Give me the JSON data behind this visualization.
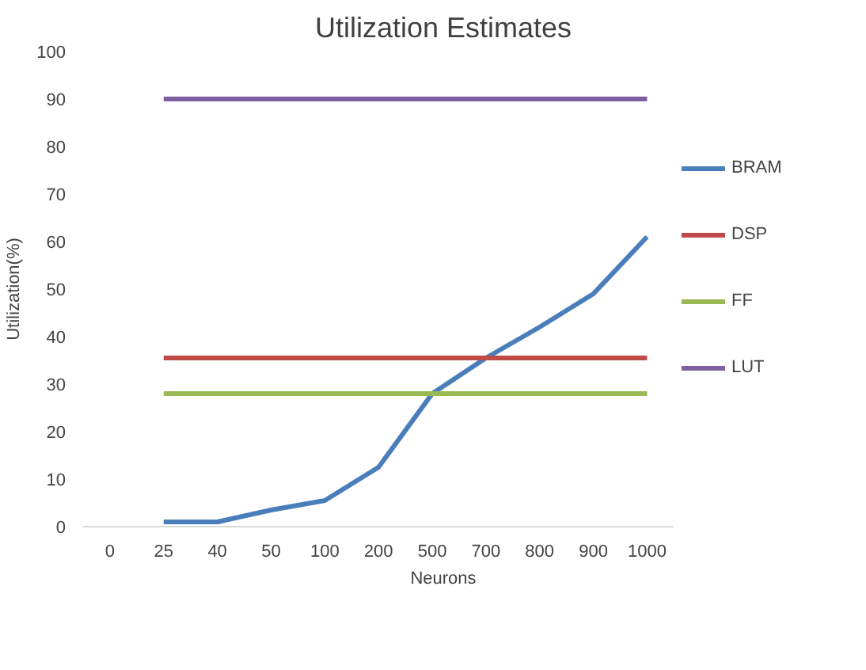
{
  "chart_data": {
    "type": "line",
    "title": "Utilization Estimates",
    "xlabel": "Neurons",
    "ylabel": "Utilization(%)",
    "categories": [
      "0",
      "25",
      "40",
      "50",
      "100",
      "200",
      "500",
      "700",
      "800",
      "900",
      "1000"
    ],
    "series": [
      {
        "name": "BRAM",
        "color": "#4a7ebb",
        "values": [
          null,
          1,
          1,
          3.5,
          5.5,
          12.5,
          28,
          35.5,
          42,
          49,
          61
        ]
      },
      {
        "name": "DSP",
        "color": "#be4b48",
        "values": [
          null,
          35.5,
          35.5,
          35.5,
          35.5,
          35.5,
          35.5,
          35.5,
          35.5,
          35.5,
          35.5
        ]
      },
      {
        "name": "FF",
        "color": "#98b954",
        "values": [
          null,
          28,
          28,
          28,
          28,
          28,
          28,
          28,
          28,
          28,
          28
        ]
      },
      {
        "name": "LUT",
        "color": "#7d60a0",
        "values": [
          null,
          90,
          90,
          90,
          90,
          90,
          90,
          90,
          90,
          90,
          90
        ]
      }
    ],
    "ylim": [
      0,
      100
    ],
    "yticks": [
      0,
      10,
      20,
      30,
      40,
      50,
      60,
      70,
      80,
      90,
      100
    ],
    "grid": false,
    "legend": "right",
    "marker": "none",
    "line_style": "solid"
  }
}
